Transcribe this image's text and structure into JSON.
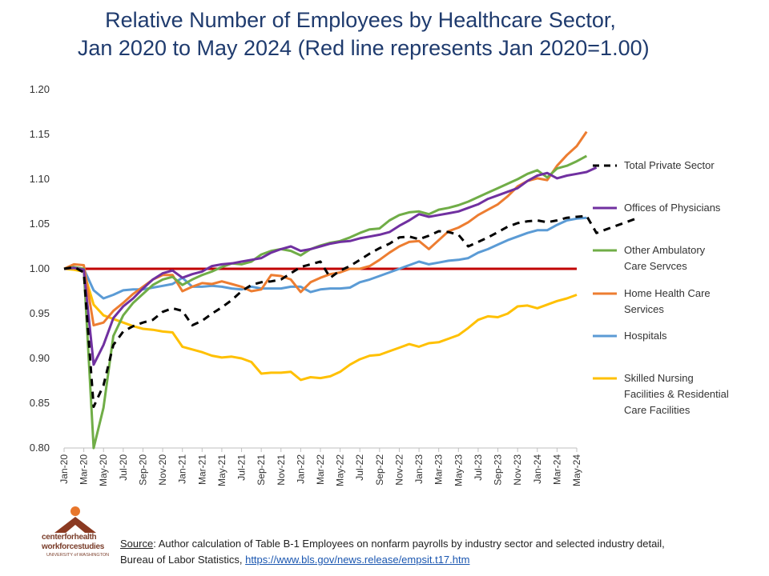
{
  "title": {
    "line1": "Relative Number of Employees by Healthcare Sector,",
    "line2": " Jan 2020 to May 2024 (Red line represents Jan 2020=1.00)"
  },
  "source": {
    "label": "Source",
    "text": ": Author calculation of Table B-1 Employees on nonfarm payrolls by industry sector and selected industry detail, Bureau of Labor Statistics, ",
    "link": "https://www.bls.gov/news.release/empsit.t17.htm"
  },
  "logo": {
    "line1": "centerforhealth",
    "line2": "workforcestudies",
    "line3": "UNIVERSITY of WASHINGTON"
  },
  "chart_data": {
    "type": "line",
    "title": "Relative Number of Employees by Healthcare Sector, Jan 2020 to May 2024 (Red line represents Jan 2020=1.00)",
    "xlabel": "",
    "ylabel": "",
    "ylim": [
      0.8,
      1.2
    ],
    "y_ticks": [
      "0.80",
      "0.85",
      "0.90",
      "0.95",
      "1.00",
      "1.05",
      "1.10",
      "1.15",
      "1.20"
    ],
    "x_tick_labels": [
      "Jan-20",
      "Mar-20",
      "May-20",
      "Jul-20",
      "Sep-20",
      "Nov-20",
      "Jan-21",
      "Mar-21",
      "May-21",
      "Jul-21",
      "Sep-21",
      "Nov-21",
      "Jan-22",
      "Mar-22",
      "May-22",
      "Jul-22",
      "Sep-22",
      "Nov-22",
      "Jan-23",
      "Mar-23",
      "May-23",
      "Jul-23",
      "Sep-23",
      "Nov-23",
      "Jan-24",
      "Mar-24",
      "May-24"
    ],
    "reference_line": {
      "value": 1.0,
      "color": "#c00000"
    },
    "legend_position": "right",
    "series": [
      {
        "name": "Total  Private Sector",
        "color": "#000000",
        "dashed": true,
        "values": [
          1.0,
          1.002,
          0.996,
          0.846,
          0.87,
          0.915,
          0.93,
          0.936,
          0.94,
          0.943,
          0.952,
          0.956,
          0.953,
          0.937,
          0.942,
          0.95,
          0.957,
          0.965,
          0.975,
          0.982,
          0.985,
          0.986,
          0.988,
          0.995,
          1.002,
          1.005,
          1.008,
          0.99,
          0.998,
          1.003,
          1.01,
          1.017,
          1.023,
          1.028,
          1.035,
          1.036,
          1.033,
          1.037,
          1.042,
          1.041,
          1.038,
          1.025,
          1.03,
          1.035,
          1.041,
          1.047,
          1.051,
          1.053,
          1.054,
          1.052,
          1.054,
          1.057,
          1.058,
          1.059,
          1.04,
          1.044,
          1.048,
          1.052,
          1.056
        ]
      },
      {
        "name": "Offices of Physicians",
        "color": "#7030a0",
        "dashed": false,
        "values": [
          1.0,
          1.001,
          0.999,
          0.893,
          0.915,
          0.945,
          0.958,
          0.967,
          0.978,
          0.988,
          0.995,
          0.998,
          0.99,
          0.994,
          0.997,
          1.003,
          1.005,
          1.006,
          1.008,
          1.01,
          1.012,
          1.018,
          1.022,
          1.025,
          1.02,
          1.022,
          1.025,
          1.028,
          1.03,
          1.031,
          1.034,
          1.036,
          1.038,
          1.041,
          1.048,
          1.054,
          1.061,
          1.058,
          1.06,
          1.062,
          1.064,
          1.068,
          1.072,
          1.078,
          1.082,
          1.086,
          1.09,
          1.098,
          1.104,
          1.107,
          1.101,
          1.104,
          1.106,
          1.108,
          1.113
        ]
      },
      {
        "name": "Other Ambulatory Care Servces",
        "color": "#70ad47",
        "dashed": false,
        "values": [
          1.0,
          1.002,
          1.0,
          0.8,
          0.845,
          0.925,
          0.948,
          0.962,
          0.972,
          0.982,
          0.988,
          0.991,
          0.982,
          0.988,
          0.993,
          0.997,
          1.002,
          1.006,
          1.005,
          1.008,
          1.016,
          1.02,
          1.022,
          1.02,
          1.015,
          1.022,
          1.026,
          1.029,
          1.031,
          1.035,
          1.04,
          1.044,
          1.045,
          1.054,
          1.06,
          1.063,
          1.064,
          1.061,
          1.066,
          1.068,
          1.071,
          1.075,
          1.08,
          1.085,
          1.09,
          1.095,
          1.1,
          1.106,
          1.11,
          1.102,
          1.112,
          1.115,
          1.12,
          1.126
        ]
      },
      {
        "name": "Home Health Care Services",
        "color": "#ed7d31",
        "dashed": false,
        "values": [
          1.0,
          1.005,
          1.004,
          0.937,
          0.94,
          0.953,
          0.962,
          0.972,
          0.98,
          0.988,
          0.993,
          0.993,
          0.975,
          0.98,
          0.984,
          0.983,
          0.986,
          0.983,
          0.98,
          0.975,
          0.977,
          0.993,
          0.992,
          0.988,
          0.974,
          0.985,
          0.99,
          0.994,
          0.996,
          1.0,
          1.0,
          1.003,
          1.01,
          1.018,
          1.025,
          1.03,
          1.031,
          1.022,
          1.032,
          1.042,
          1.046,
          1.052,
          1.06,
          1.066,
          1.072,
          1.081,
          1.092,
          1.098,
          1.101,
          1.099,
          1.115,
          1.127,
          1.137,
          1.153
        ]
      },
      {
        "name": "Hospitals",
        "color": "#5b9bd5",
        "dashed": false,
        "values": [
          1.0,
          1.001,
          1.0,
          0.976,
          0.967,
          0.971,
          0.976,
          0.977,
          0.977,
          0.979,
          0.981,
          0.983,
          0.99,
          0.98,
          0.98,
          0.981,
          0.98,
          0.978,
          0.977,
          0.98,
          0.978,
          0.978,
          0.978,
          0.98,
          0.98,
          0.974,
          0.977,
          0.978,
          0.978,
          0.979,
          0.985,
          0.988,
          0.992,
          0.996,
          1.0,
          1.004,
          1.008,
          1.005,
          1.007,
          1.009,
          1.01,
          1.012,
          1.018,
          1.022,
          1.027,
          1.032,
          1.036,
          1.04,
          1.043,
          1.043,
          1.049,
          1.054,
          1.056,
          1.057
        ]
      },
      {
        "name": "Skilled Nursing Facilities & Residential Care Facilities",
        "color": "#ffc000",
        "dashed": false,
        "values": [
          1.0,
          0.999,
          0.997,
          0.96,
          0.948,
          0.944,
          0.94,
          0.936,
          0.933,
          0.932,
          0.93,
          0.929,
          0.913,
          0.91,
          0.907,
          0.903,
          0.901,
          0.902,
          0.9,
          0.896,
          0.883,
          0.884,
          0.884,
          0.885,
          0.876,
          0.879,
          0.878,
          0.88,
          0.885,
          0.893,
          0.899,
          0.903,
          0.904,
          0.908,
          0.912,
          0.916,
          0.913,
          0.917,
          0.918,
          0.922,
          0.926,
          0.934,
          0.943,
          0.947,
          0.946,
          0.95,
          0.958,
          0.959,
          0.956,
          0.96,
          0.964,
          0.967,
          0.971
        ]
      }
    ],
    "legend": {
      "total": [
        "Total  Private Sector"
      ],
      "physicians": [
        "Offices of Physicians"
      ],
      "ambulatory": [
        "Other Ambulatory",
        "Care Servces"
      ],
      "home": [
        "Home Health Care",
        "Services"
      ],
      "hospitals": [
        "Hospitals"
      ],
      "nursing": [
        "Skilled Nursing",
        "Facilities & Residential",
        "Care Facilities"
      ]
    }
  }
}
